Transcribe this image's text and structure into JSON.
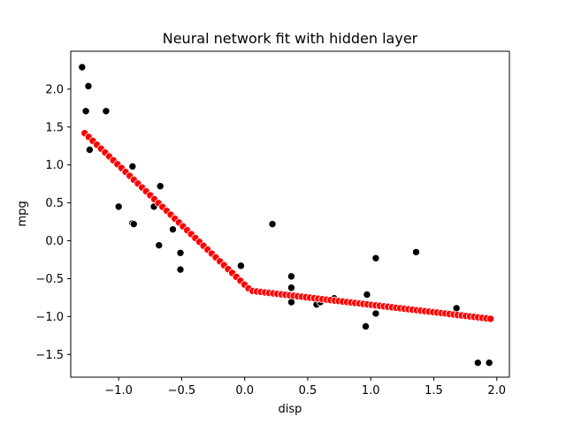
{
  "chart_data": {
    "type": "scatter",
    "title": "Neural network fit with hidden layer",
    "xlabel": "disp",
    "ylabel": "mpg",
    "xlim": [
      -1.38,
      2.1
    ],
    "ylim": [
      -1.8,
      2.5
    ],
    "xticks": [
      -1.0,
      -0.5,
      0.0,
      0.5,
      1.0,
      1.5,
      2.0
    ],
    "xtick_labels": [
      "−1.0",
      "−0.5",
      "0.0",
      "0.5",
      "1.0",
      "1.5",
      "2.0"
    ],
    "yticks": [
      -1.5,
      -1.0,
      -0.5,
      0.0,
      0.5,
      1.0,
      1.5,
      2.0
    ],
    "ytick_labels": [
      "−1.5",
      "−1.0",
      "−0.5",
      "0.0",
      "0.5",
      "1.0",
      "1.5",
      "2.0"
    ],
    "grid": false,
    "legend": "none",
    "series": [
      {
        "role": "observed",
        "color": "#000000",
        "points": [
          [
            -1.29,
            2.29
          ],
          [
            -1.24,
            2.04
          ],
          [
            -1.26,
            1.71
          ],
          [
            -1.1,
            1.71
          ],
          [
            -1.23,
            1.2
          ],
          [
            -0.89,
            0.98
          ],
          [
            -0.67,
            0.72
          ],
          [
            -1.0,
            0.45
          ],
          [
            -0.72,
            0.45
          ],
          [
            -0.89,
            0.23
          ],
          [
            -0.88,
            0.22
          ],
          [
            -0.57,
            0.15
          ],
          [
            -0.68,
            -0.06
          ],
          [
            -0.51,
            -0.16
          ],
          [
            -0.51,
            -0.38
          ],
          [
            -0.03,
            -0.33
          ],
          [
            0.22,
            0.22
          ],
          [
            0.37,
            -0.47
          ],
          [
            0.37,
            -0.62
          ],
          [
            0.37,
            -0.81
          ],
          [
            0.57,
            -0.84
          ],
          [
            0.6,
            -0.81
          ],
          [
            0.71,
            -0.76
          ],
          [
            0.97,
            -0.71
          ],
          [
            0.96,
            -1.13
          ],
          [
            1.04,
            -0.96
          ],
          [
            1.04,
            -0.23
          ],
          [
            1.36,
            -0.15
          ],
          [
            1.68,
            -0.89
          ],
          [
            1.85,
            -1.61
          ],
          [
            1.94,
            -1.61
          ]
        ]
      },
      {
        "role": "fitted",
        "color": "#ff0000",
        "x_start": -1.27,
        "x_end": 1.95,
        "count": 100,
        "knot_x": 0.05,
        "y_at_start": 1.42,
        "y_at_knot": -0.66,
        "y_at_end": -1.03
      }
    ]
  }
}
